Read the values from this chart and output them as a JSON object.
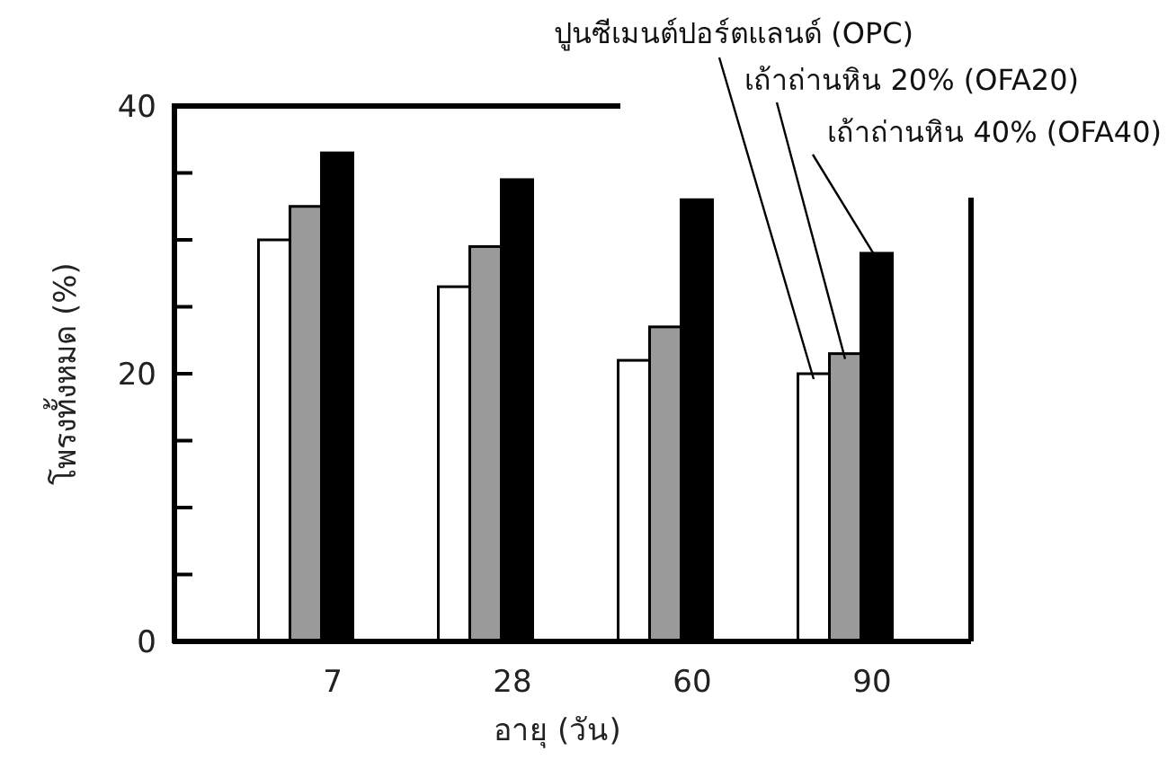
{
  "chart_data": {
    "type": "bar",
    "xlabel": "อายุ (วัน)",
    "ylabel": "โพรงทั้งหมด (%)",
    "categories": [
      "7",
      "28",
      "60",
      "90"
    ],
    "series": [
      {
        "name": "ปูนซีเมนต์ปอร์ตแลนด์ (OPC)",
        "color": "#ffffff",
        "values": [
          30,
          26.5,
          21,
          20
        ]
      },
      {
        "name": "เถ้าถ่านหิน 20% (OFA20)",
        "color": "#9a9a9a",
        "values": [
          32.5,
          29.5,
          23.5,
          21.5
        ]
      },
      {
        "name": "เถ้าถ่านหิน 40% (OFA40)",
        "color": "#000000",
        "values": [
          36.5,
          34.5,
          33,
          29
        ]
      }
    ],
    "ylim": [
      0,
      40
    ],
    "yticks": [
      0,
      {
        "value": 5,
        "label": null
      },
      {
        "value": 10,
        "label": null
      },
      {
        "value": 15,
        "label": null
      },
      20,
      {
        "value": 25,
        "label": null
      },
      {
        "value": 30,
        "label": null
      },
      {
        "value": 35,
        "label": null
      },
      40
    ],
    "grid": false
  }
}
